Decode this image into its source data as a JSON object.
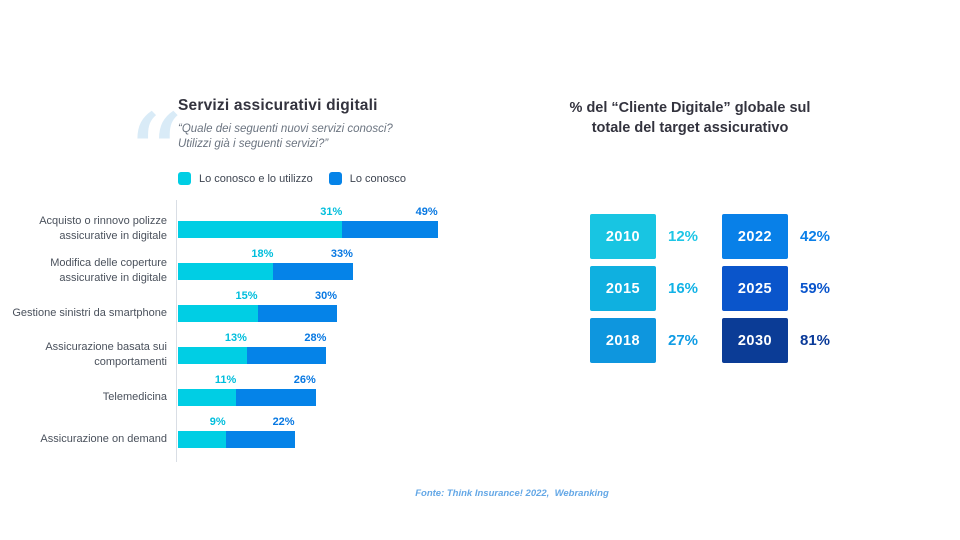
{
  "accent_colors": {
    "cyan": "#00cee4",
    "blue": "#0583e8",
    "cyan_label": "#00bedc",
    "blue_label": "#0778e2"
  },
  "left_chart": {
    "title": "Servizi assicurativi digitali",
    "subtitle_lines": [
      "“Quale dei seguenti nuovi servizi conosci?",
      "Utilizzi già i seguenti servizi?”"
    ],
    "legend": [
      {
        "label": "Lo conosco e lo utilizzo",
        "color": "#00cee4"
      },
      {
        "label": "Lo conosco",
        "color": "#0583e8"
      }
    ]
  },
  "right_panel": {
    "title_lines": [
      "% del “Cliente Digitale” globale sul",
      "totale del target assicurativo"
    ]
  },
  "footer": {
    "source": "Fonte: Think Insurance! 2022,  Webranking"
  },
  "chart_data": [
    {
      "type": "bar",
      "orientation": "horizontal",
      "stacked": true,
      "title": "Servizi assicurativi digitali",
      "subtitle": "“Quale dei seguenti nuovi servizi conosci? Utilizzi già i seguenti servizi?”",
      "categories": [
        "Acquisto o rinnovo polizze assicurative in digitale",
        "Modifica delle coperture assicurative in digitale",
        "Gestione sinistri da smartphone",
        "Assicurazione basata sui comportamenti",
        "Telemedicina",
        "Assicurazione on demand"
      ],
      "series": [
        {
          "name": "Lo conosco e lo utilizzo",
          "color": "#00cee4",
          "label_color": "#00bedc",
          "values": [
            31,
            18,
            15,
            13,
            11,
            9
          ]
        },
        {
          "name": "Lo conosco",
          "color": "#0583e8",
          "label_color": "#0778e2",
          "values": [
            49,
            33,
            30,
            28,
            26,
            22
          ],
          "note": "cumulative total; blue segment drawn from cyan value up to this value"
        }
      ],
      "value_suffix": "%",
      "xlim": [
        0,
        55
      ],
      "grid": false,
      "legend_position": "top"
    },
    {
      "type": "table",
      "title": "% del “Cliente Digitale” globale sul totale del target assicurativo",
      "columns": [
        "year",
        "share"
      ],
      "rows": [
        {
          "year": "2010",
          "share": "12%",
          "box_color": "#18c5e2",
          "value_color": "#1ec6e6"
        },
        {
          "year": "2015",
          "share": "16%",
          "box_color": "#0fb0e0",
          "value_color": "#12b2e6"
        },
        {
          "year": "2018",
          "share": "27%",
          "box_color": "#0e96de",
          "value_color": "#109ce4"
        },
        {
          "year": "2022",
          "share": "42%",
          "box_color": "#0880e8",
          "value_color": "#0b7fe8"
        },
        {
          "year": "2025",
          "share": "59%",
          "box_color": "#0a55cb",
          "value_color": "#0a55cc"
        },
        {
          "year": "2030",
          "share": "81%",
          "box_color": "#0b3c96",
          "value_color": "#0a3a99"
        }
      ],
      "layout": "two columns: years 2010/2015/2018 left, 2022/2025/2030 right"
    }
  ]
}
